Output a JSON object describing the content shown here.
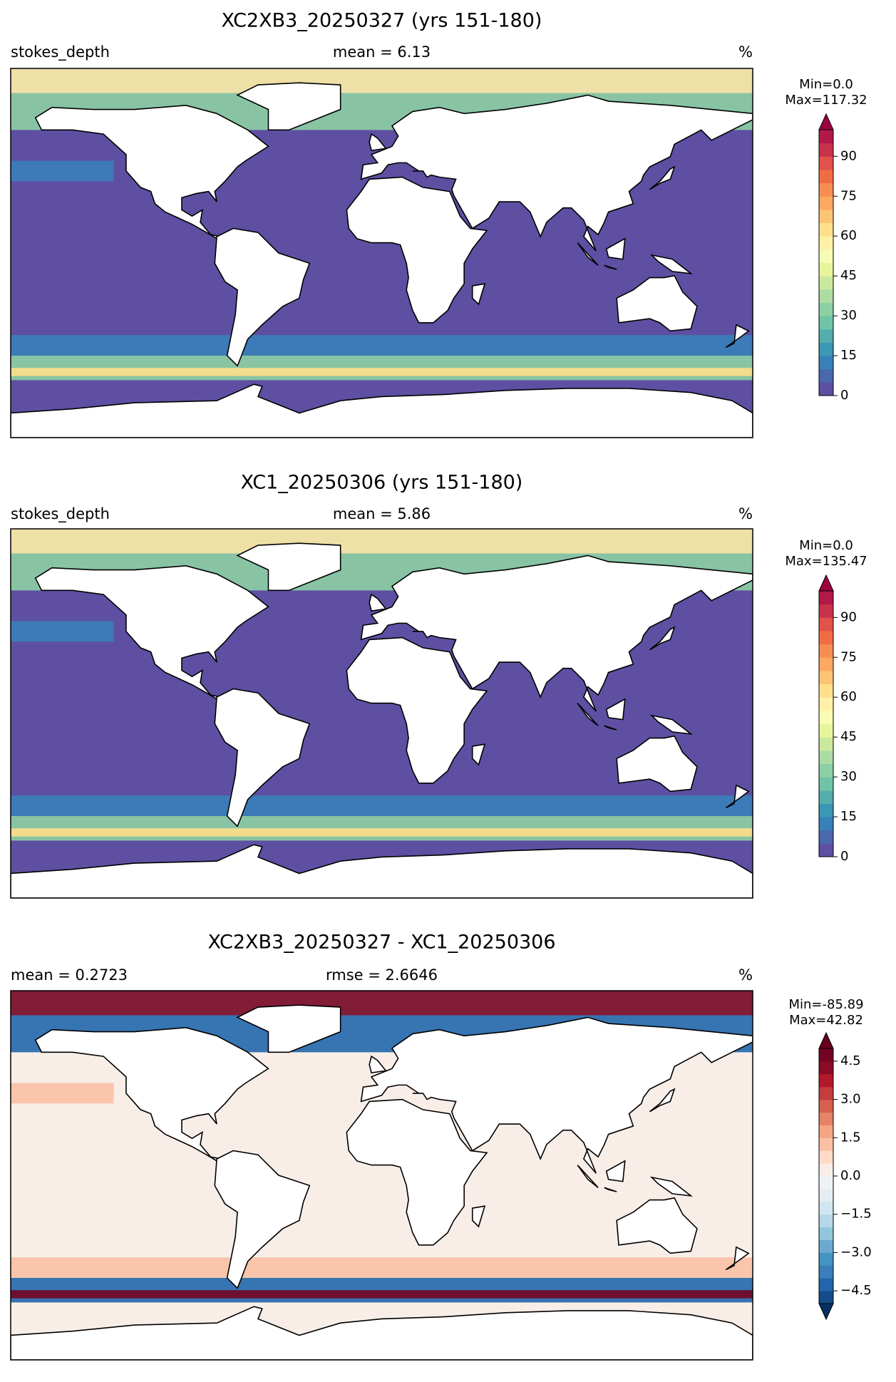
{
  "panels": [
    {
      "title": "XC2XB3_20250327 (yrs 151-180)",
      "left": "stokes_depth",
      "center": "mean = 6.13",
      "right": "%",
      "min_label": "Min=0.0",
      "max_label": "Max=117.32",
      "colorbar": {
        "lim": [
          0,
          100
        ],
        "ticks": [
          0,
          15,
          30,
          45,
          60,
          75,
          90
        ],
        "extend": "max",
        "colors": [
          "#5e4fa2",
          "#4a68ad",
          "#3880b9",
          "#3a97b6",
          "#54aeac",
          "#6ec4a4",
          "#8dd0a4",
          "#acdca3",
          "#cbe99d",
          "#e8f59b",
          "#f7fbb3",
          "#fef0a6",
          "#fedf8a",
          "#fdc473",
          "#fca85e",
          "#f88d52",
          "#f06c45",
          "#e0524a",
          "#c8334c",
          "#b11948"
        ],
        "over": "#9e0142"
      }
    },
    {
      "title": "XC1_20250306 (yrs 151-180)",
      "left": "stokes_depth",
      "center": "mean = 5.86",
      "right": "%",
      "min_label": "Min=0.0",
      "max_label": "Max=135.47",
      "colorbar": {
        "lim": [
          0,
          100
        ],
        "ticks": [
          0,
          15,
          30,
          45,
          60,
          75,
          90
        ],
        "extend": "max",
        "colors": [
          "#5e4fa2",
          "#4a68ad",
          "#3880b9",
          "#3a97b6",
          "#54aeac",
          "#6ec4a4",
          "#8dd0a4",
          "#acdca3",
          "#cbe99d",
          "#e8f59b",
          "#f7fbb3",
          "#fef0a6",
          "#fedf8a",
          "#fdc473",
          "#fca85e",
          "#f88d52",
          "#f06c45",
          "#e0524a",
          "#c8334c",
          "#b11948"
        ],
        "over": "#9e0142"
      }
    },
    {
      "title": "XC2XB3_20250327 - XC1_20250306",
      "left": "mean = 0.2723",
      "center": "rmse = 2.6646",
      "right": "%",
      "min_label": "Min=-85.89",
      "max_label": "Max=42.82",
      "colorbar": {
        "lim": [
          -5,
          5
        ],
        "ticks": [
          {
            "value": -4.5,
            "label": "−4.5"
          },
          {
            "value": -3,
            "label": "−3.0"
          },
          {
            "value": -1.5,
            "label": "−1.5"
          },
          {
            "value": 0,
            "label": "0.0"
          },
          1.5,
          {
            "value": 3,
            "label": "3.0"
          },
          4.5
        ],
        "extend": "both",
        "colors": [
          "#134c88",
          "#2166ac",
          "#3a7ebb",
          "#4393c3",
          "#6ba9cf",
          "#92c5de",
          "#b5d7e8",
          "#d1e5f0",
          "#e3edf3",
          "#eef2f5",
          "#f9eee7",
          "#fddbc7",
          "#f9c0a4",
          "#f4a582",
          "#e58267",
          "#d6604d",
          "#c43c3c",
          "#b2182b",
          "#8a0b25",
          "#740424"
        ],
        "under": "#053061",
        "over": "#67001f"
      }
    }
  ]
}
